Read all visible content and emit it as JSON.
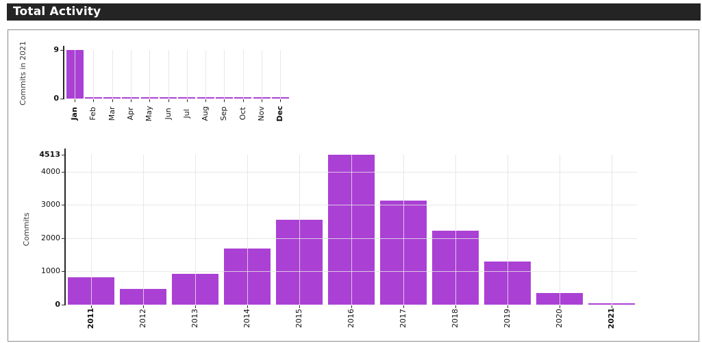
{
  "header": {
    "title": "Total Activity"
  },
  "colors": {
    "bar": "#ab40d5",
    "grid": "#e3e3e3",
    "axis": "#262626",
    "tick_text": "#111111",
    "axis_label_text": "#3a3a3a",
    "header_bg": "#242424",
    "header_text": "#ffffff",
    "panel_border": "#8a8a8a",
    "background": "#ffffff"
  },
  "chart_data": [
    {
      "id": "commits-by-month-2021",
      "type": "bar",
      "title": "",
      "xlabel": "",
      "ylabel": "Commits in 2021",
      "categories": [
        "Jan",
        "Feb",
        "Mar",
        "Apr",
        "May",
        "Jun",
        "Jul",
        "Aug",
        "Sep",
        "Oct",
        "Nov",
        "Dec"
      ],
      "values": [
        9,
        0,
        0,
        0,
        0,
        0,
        0,
        0,
        0,
        0,
        0,
        0
      ],
      "ylim": [
        0,
        9
      ],
      "yticks": [
        0,
        9
      ],
      "grid": "vertical-at-ticks",
      "bold_edge_tick_labels": true
    },
    {
      "id": "commits-by-year",
      "type": "bar",
      "title": "",
      "xlabel": "",
      "ylabel": "Commits",
      "categories": [
        "2011",
        "2012",
        "2013",
        "2014",
        "2015",
        "2016",
        "2017",
        "2018",
        "2019",
        "2020",
        "2021"
      ],
      "values": [
        830,
        480,
        930,
        1690,
        2550,
        4513,
        3140,
        2230,
        1300,
        350,
        9
      ],
      "ylim": [
        0,
        4513
      ],
      "yticks": [
        0,
        1000,
        2000,
        3000,
        4000,
        4513
      ],
      "grid": "horizontal-and-vertical",
      "bold_edge_tick_labels": true
    }
  ]
}
